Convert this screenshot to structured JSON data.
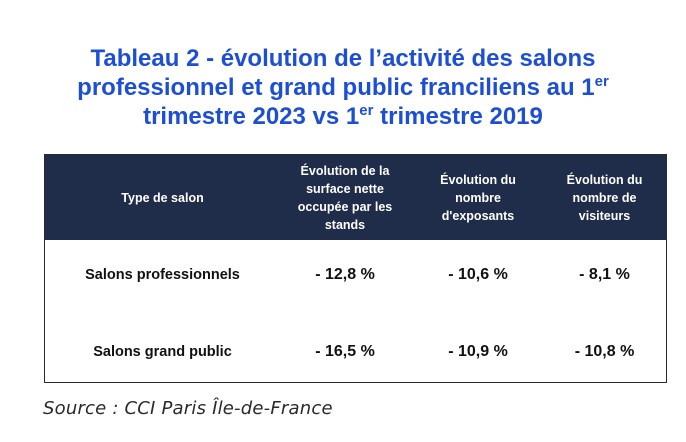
{
  "title": {
    "line1": "Tableau 2 - évolution de l’activité des salons",
    "line2_pre": "professionnel et grand public franciliens au 1",
    "line2_sup": "er",
    "line3_pre": "trimestre 2023 vs 1",
    "line3_sup": "er",
    "line3_post": " trimestre 2019"
  },
  "table": {
    "headers": {
      "type": "Type de salon",
      "surface": [
        "Évolution de la",
        "surface nette",
        "occupée par les",
        "stands"
      ],
      "exposants": [
        "Évolution du",
        "nombre",
        "d'exposants"
      ],
      "visiteurs": [
        "Évolution du",
        "nombre de",
        "visiteurs"
      ]
    },
    "rows": [
      {
        "type": "Salons professionnels",
        "surface": "- 12,8 %",
        "exposants": "- 10,6 %",
        "visiteurs": "- 8,1 %"
      },
      {
        "type": "Salons grand public",
        "surface": "- 16,5 %",
        "exposants": "- 10,9 %",
        "visiteurs": "- 10,8 %"
      }
    ]
  },
  "source": "Source : CCI Paris Île-de-France",
  "colors": {
    "title": "#1d4fd6",
    "header_bg": "#1f2c4a",
    "header_text": "#ffffff",
    "border": "#2b2b2b"
  }
}
